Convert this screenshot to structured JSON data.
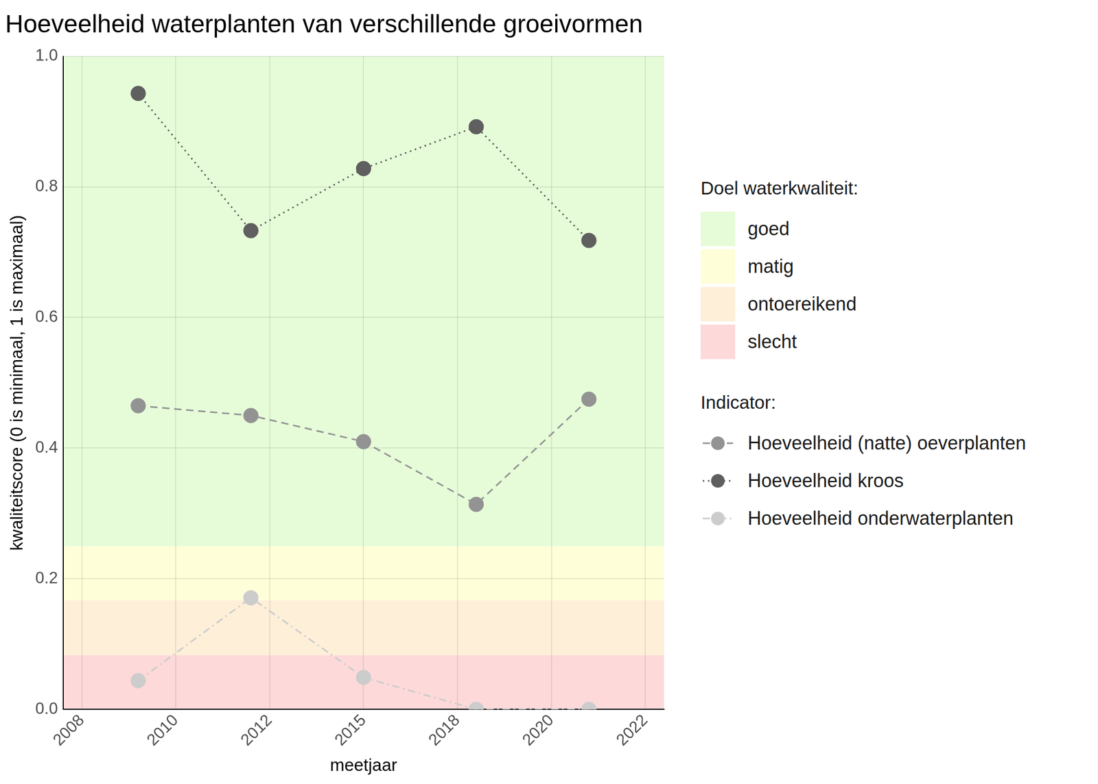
{
  "chart_data": {
    "type": "line",
    "title": "Hoeveelheid waterplanten van verschillende groeivormen",
    "xlabel": "meetjaar",
    "ylabel": "kwaliteitscore (0 is minimaal, 1 is maximaal)",
    "x": [
      2009,
      2012,
      2015,
      2018,
      2021
    ],
    "series": [
      {
        "name": "Hoeveelheid (natte) oeverplanten",
        "color": "#939393",
        "line_style": "dashed",
        "marker": "circle",
        "values": [
          0.465,
          0.45,
          0.41,
          0.314,
          0.475
        ]
      },
      {
        "name": "Hoeveelheid kroos",
        "color": "#5f5f5f",
        "line_style": "dotted",
        "marker": "circle",
        "values": [
          0.943,
          0.733,
          0.828,
          0.892,
          0.718
        ]
      },
      {
        "name": "Hoeveelheid onderwaterplanten",
        "color": "#cccccc",
        "line_style": "dashdot",
        "marker": "circle",
        "values": [
          0.044,
          0.171,
          0.049,
          0.0,
          0.0
        ]
      }
    ],
    "legend_title": "Indicator:",
    "bands_title": "Doel waterkwaliteit:",
    "bands": [
      {
        "name": "goed",
        "from": 0.25,
        "to": 1.0,
        "color": "#e6fcd8"
      },
      {
        "name": "matig",
        "from": 0.167,
        "to": 0.25,
        "color": "#fefed8"
      },
      {
        "name": "ontoereikend",
        "from": 0.083,
        "to": 0.167,
        "color": "#fdefd8"
      },
      {
        "name": "slecht",
        "from": 0.0,
        "to": 0.083,
        "color": "#fdd9d9"
      }
    ],
    "xlim": [
      2007,
      2023
    ],
    "xticks": [
      {
        "value": 2007.5,
        "label": "2008"
      },
      2010,
      {
        "value": 2012.5,
        "label": "2012"
      },
      2015,
      {
        "value": 2017.5,
        "label": "2018"
      },
      2020,
      {
        "value": 2022.5,
        "label": "2022"
      }
    ],
    "ylim": [
      0,
      1
    ],
    "yticks": [
      {
        "value": 0,
        "label": "0.0"
      },
      0.2,
      0.4,
      0.6,
      0.8,
      {
        "value": 1,
        "label": "1.0"
      }
    ],
    "grid": true,
    "legend": "right"
  }
}
